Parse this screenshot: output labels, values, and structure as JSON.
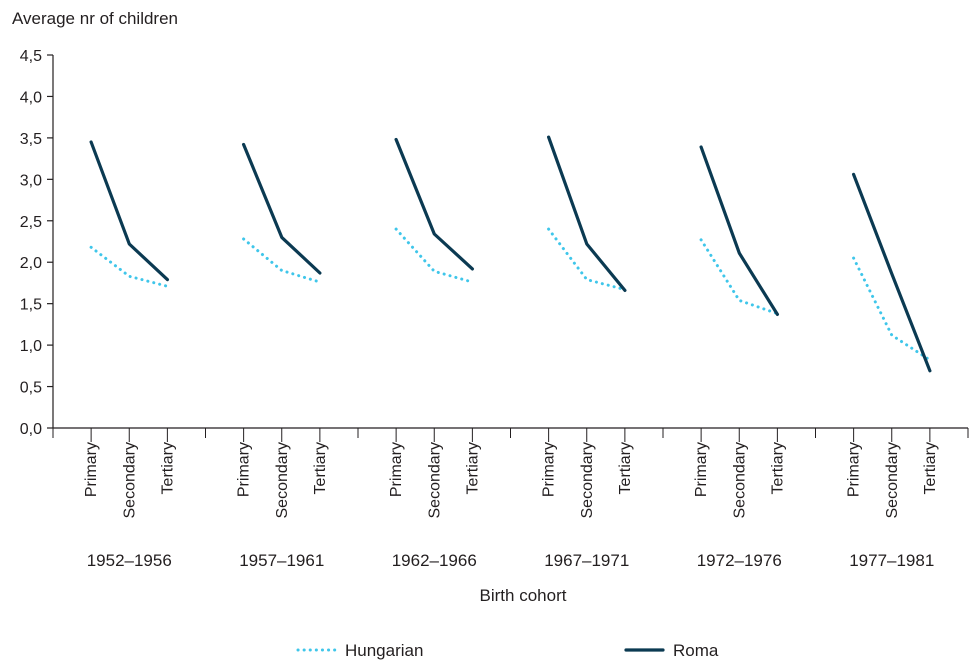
{
  "chart_data": {
    "type": "line",
    "ylabel": "Average nr of children",
    "xlabel": "Birth cohort",
    "ylim": [
      0,
      4.5
    ],
    "y_ticks": [
      "0,0",
      "0,5",
      "1,0",
      "1,5",
      "2,0",
      "2,5",
      "3,0",
      "3,5",
      "4,0",
      "4,5"
    ],
    "y_tick_values": [
      0,
      0.5,
      1.0,
      1.5,
      2.0,
      2.5,
      3.0,
      3.5,
      4.0,
      4.5
    ],
    "education_levels": [
      "Primary",
      "Secondary",
      "Tertiary"
    ],
    "cohorts": [
      "1952–1956",
      "1957–1961",
      "1962–1966",
      "1967–1971",
      "1972–1976",
      "1977–1981"
    ],
    "series": [
      {
        "name": "Hungarian",
        "color": "#3fc6ea",
        "style": "dotted",
        "values": [
          [
            2.18,
            1.83,
            1.71
          ],
          [
            2.28,
            1.9,
            1.76
          ],
          [
            2.4,
            1.89,
            1.76
          ],
          [
            2.4,
            1.79,
            1.67
          ],
          [
            2.27,
            1.54,
            1.38
          ],
          [
            2.05,
            1.12,
            0.82
          ]
        ]
      },
      {
        "name": "Roma",
        "color": "#0b3a52",
        "style": "solid",
        "values": [
          [
            3.45,
            2.22,
            1.79
          ],
          [
            3.42,
            2.3,
            1.87
          ],
          [
            3.48,
            2.34,
            1.92
          ],
          [
            3.51,
            2.22,
            1.66
          ],
          [
            3.39,
            2.11,
            1.37
          ],
          [
            3.06,
            1.86,
            0.69
          ]
        ]
      }
    ],
    "legend_position": "bottom",
    "grid": false
  }
}
